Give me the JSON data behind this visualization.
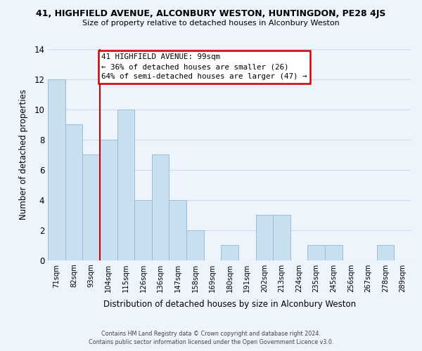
{
  "title": "41, HIGHFIELD AVENUE, ALCONBURY WESTON, HUNTINGDON, PE28 4JS",
  "subtitle": "Size of property relative to detached houses in Alconbury Weston",
  "xlabel": "Distribution of detached houses by size in Alconbury Weston",
  "ylabel": "Number of detached properties",
  "footer_line1": "Contains HM Land Registry data © Crown copyright and database right 2024.",
  "footer_line2": "Contains public sector information licensed under the Open Government Licence v3.0.",
  "bin_labels": [
    "71sqm",
    "82sqm",
    "93sqm",
    "104sqm",
    "115sqm",
    "126sqm",
    "136sqm",
    "147sqm",
    "158sqm",
    "169sqm",
    "180sqm",
    "191sqm",
    "202sqm",
    "213sqm",
    "224sqm",
    "235sqm",
    "245sqm",
    "256sqm",
    "267sqm",
    "278sqm",
    "289sqm"
  ],
  "bar_values": [
    12,
    9,
    7,
    8,
    10,
    4,
    7,
    4,
    2,
    0,
    1,
    0,
    3,
    3,
    0,
    1,
    1,
    0,
    0,
    1,
    0
  ],
  "bar_color": "#c8dff0",
  "bar_edge_color": "#9bbdd6",
  "grid_color": "#ccdded",
  "background_color": "#eef4fb",
  "annotation_title": "41 HIGHFIELD AVENUE: 99sqm",
  "annotation_line2": "← 36% of detached houses are smaller (26)",
  "annotation_line3": "64% of semi-detached houses are larger (47) →",
  "annotation_box_color": "#ffffff",
  "annotation_box_edge": "#cc0000",
  "property_line_color": "#cc0000",
  "property_line_bin_index": 2,
  "ylim": [
    0,
    14
  ],
  "yticks": [
    0,
    2,
    4,
    6,
    8,
    10,
    12,
    14
  ]
}
